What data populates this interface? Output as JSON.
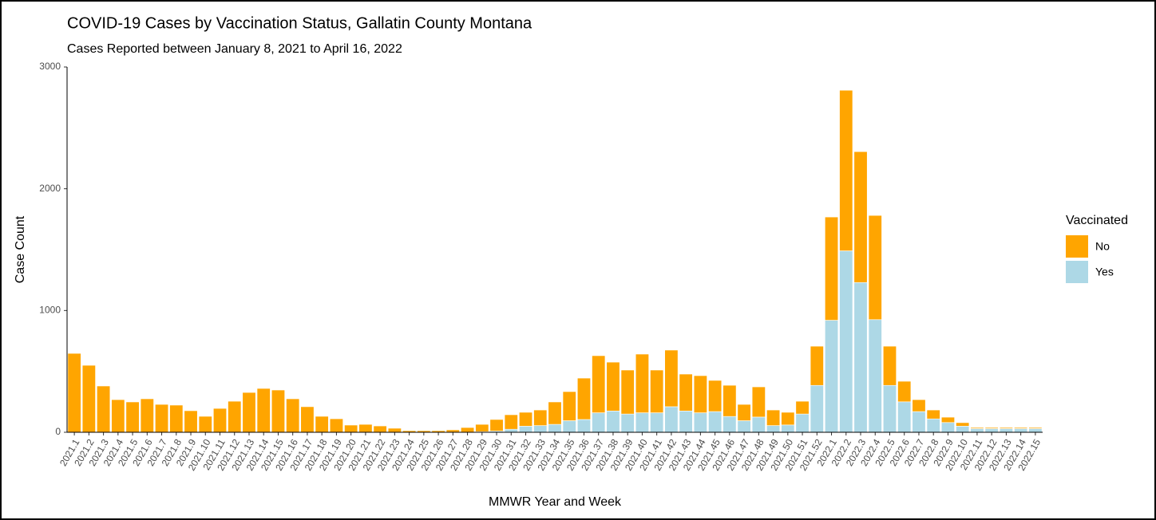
{
  "chart_data": {
    "type": "stacked_bar",
    "title": "COVID-19 Cases by Vaccination Status, Gallatin County Montana",
    "subtitle": "Cases Reported between January 8, 2021 to April 16, 2022",
    "x_label": "MMWR Year and Week",
    "y_label": "Case Count",
    "legend_title": "Vaccinated",
    "categories": [
      "2021.1",
      "2021.2",
      "2021.3",
      "2021.4",
      "2021.5",
      "2021.6",
      "2021.7",
      "2021.8",
      "2021.9",
      "2021.10",
      "2021.11",
      "2021.12",
      "2021.13",
      "2021.14",
      "2021.15",
      "2021.16",
      "2021.17",
      "2021.18",
      "2021.19",
      "2021.20",
      "2021.21",
      "2021.22",
      "2021.23",
      "2021.24",
      "2021.25",
      "2021.26",
      "2021.27",
      "2021.28",
      "2021.29",
      "2021.30",
      "2021.31",
      "2021.32",
      "2021.33",
      "2021.34",
      "2021.35",
      "2021.36",
      "2021.37",
      "2021.38",
      "2021.39",
      "2021.40",
      "2021.41",
      "2021.42",
      "2021.43",
      "2021.44",
      "2021.45",
      "2021.46",
      "2021.47",
      "2021.48",
      "2021.49",
      "2021.50",
      "2021.51",
      "2021.52",
      "2022.1",
      "2022.2",
      "2022.3",
      "2022.4",
      "2022.5",
      "2022.6",
      "2022.7",
      "2022.8",
      "2022.9",
      "2022.10",
      "2022.11",
      "2022.12",
      "2022.13",
      "2022.14",
      "2022.15"
    ],
    "series": [
      {
        "name": "No",
        "color": "#ffa500",
        "values": [
          648,
          550,
          380,
          268,
          249,
          275,
          229,
          223,
          177,
          131,
          196,
          255,
          327,
          360,
          347,
          275,
          210,
          131,
          111,
          59,
          65,
          52,
          33,
          13,
          13,
          13,
          20,
          39,
          60,
          95,
          119,
          114,
          128,
          184,
          239,
          340,
          469,
          401,
          361,
          482,
          351,
          465,
          303,
          305,
          256,
          256,
          134,
          248,
          128,
          104,
          105,
          322,
          848,
          1319,
          1075,
          856,
          322,
          169,
          98,
          73,
          44,
          29,
          9,
          9,
          9,
          9,
          9
        ]
      },
      {
        "name": "Yes",
        "color": "#add8e6",
        "values": [
          0,
          0,
          0,
          0,
          0,
          0,
          0,
          0,
          0,
          0,
          0,
          0,
          0,
          0,
          0,
          0,
          0,
          0,
          0,
          0,
          0,
          0,
          0,
          0,
          0,
          0,
          0,
          0,
          5,
          10,
          25,
          50,
          55,
          65,
          95,
          105,
          160,
          175,
          150,
          160,
          160,
          210,
          175,
          160,
          170,
          130,
          95,
          125,
          55,
          60,
          150,
          385,
          920,
          1490,
          1230,
          925,
          385,
          250,
          170,
          110,
          80,
          50,
          30,
          30,
          30,
          30,
          30
        ]
      }
    ],
    "ylim": [
      0,
      3000
    ],
    "yticks": [
      0,
      1000,
      2000,
      3000
    ],
    "grid": false
  }
}
